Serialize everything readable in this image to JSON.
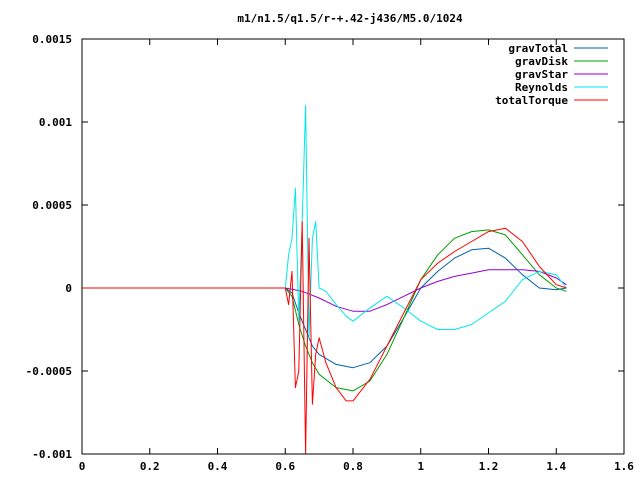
{
  "chart_data": {
    "type": "line",
    "title": "m1/n1.5/q1.5/r-+.42-j436/M5.0/1024",
    "xlabel": "",
    "ylabel": "",
    "xlim": [
      0,
      1.6
    ],
    "ylim": [
      -0.001,
      0.0015
    ],
    "grid": false,
    "legend_position": "top-right",
    "x_ticks": [
      {
        "value": 0,
        "label": "0"
      },
      {
        "value": 0.2,
        "label": "0.2"
      },
      {
        "value": 0.4,
        "label": "0.4"
      },
      {
        "value": 0.6,
        "label": "0.6"
      },
      {
        "value": 0.8,
        "label": "0.8"
      },
      {
        "value": 1.0,
        "label": "1"
      },
      {
        "value": 1.2,
        "label": "1.2"
      },
      {
        "value": 1.4,
        "label": "1.4"
      },
      {
        "value": 1.6,
        "label": "1.6"
      }
    ],
    "y_ticks": [
      {
        "value": -0.001,
        "label": "-0.001"
      },
      {
        "value": -0.0005,
        "label": "-0.0005"
      },
      {
        "value": 0,
        "label": "0"
      },
      {
        "value": 0.0005,
        "label": "0.0005"
      },
      {
        "value": 0.001,
        "label": "0.001"
      },
      {
        "value": 0.0015,
        "label": "0.0015"
      }
    ],
    "series": [
      {
        "name": "gravTotal",
        "color": "#0060ad",
        "x": [
          0,
          0.6,
          0.62,
          0.64,
          0.66,
          0.68,
          0.7,
          0.75,
          0.8,
          0.85,
          0.9,
          0.95,
          1.0,
          1.05,
          1.1,
          1.15,
          1.2,
          1.25,
          1.3,
          1.35,
          1.4,
          1.43
        ],
        "y": [
          0,
          0,
          -3e-05,
          -0.00015,
          -0.00025,
          -0.00035,
          -0.0004,
          -0.00046,
          -0.00048,
          -0.00045,
          -0.00035,
          -0.00018,
          0,
          0.0001,
          0.00018,
          0.00023,
          0.00024,
          0.00018,
          8e-05,
          0,
          -1e-05,
          0
        ]
      },
      {
        "name": "gravDisk",
        "color": "#009e00",
        "x": [
          0,
          0.6,
          0.62,
          0.64,
          0.66,
          0.68,
          0.7,
          0.75,
          0.8,
          0.85,
          0.9,
          0.95,
          1.0,
          1.05,
          1.1,
          1.15,
          1.2,
          1.25,
          1.3,
          1.35,
          1.4,
          1.43
        ],
        "y": [
          0,
          0,
          -5e-05,
          -0.00022,
          -0.00035,
          -0.00045,
          -0.00052,
          -0.0006,
          -0.00062,
          -0.00056,
          -0.0004,
          -0.00018,
          5e-05,
          0.0002,
          0.0003,
          0.00034,
          0.00035,
          0.00032,
          0.0002,
          8e-05,
          0,
          -2e-05
        ]
      },
      {
        "name": "gravStar",
        "color": "#9400d3",
        "x": [
          0,
          0.6,
          0.65,
          0.7,
          0.75,
          0.8,
          0.85,
          0.9,
          0.95,
          1.0,
          1.05,
          1.1,
          1.15,
          1.2,
          1.25,
          1.3,
          1.35,
          1.4,
          1.43
        ],
        "y": [
          0,
          0,
          -2e-05,
          -6e-05,
          -0.00011,
          -0.00014,
          -0.00014,
          -0.0001,
          -5e-05,
          0,
          4e-05,
          7e-05,
          9e-05,
          0.00011,
          0.00011,
          0.00011,
          0.0001,
          6e-05,
          2e-05
        ]
      },
      {
        "name": "Reynolds",
        "color": "#00e8e8",
        "x": [
          0,
          0.6,
          0.61,
          0.62,
          0.63,
          0.64,
          0.65,
          0.66,
          0.67,
          0.68,
          0.69,
          0.7,
          0.72,
          0.75,
          0.78,
          0.8,
          0.85,
          0.9,
          0.95,
          1.0,
          1.05,
          1.1,
          1.15,
          1.2,
          1.25,
          1.3,
          1.35,
          1.4,
          1.43
        ],
        "y": [
          0,
          0,
          0.0002,
          0.0003,
          0.0006,
          -0.0002,
          0.0004,
          0.0011,
          -0.0003,
          0.0003,
          0.0004,
          0,
          -2e-05,
          -0.0001,
          -0.00017,
          -0.0002,
          -0.00012,
          -5e-05,
          -0.00012,
          -0.0002,
          -0.00025,
          -0.00025,
          -0.00022,
          -0.00015,
          -8e-05,
          5e-05,
          0.0001,
          8e-05,
          0
        ]
      },
      {
        "name": "totalTorque",
        "color": "#ff0000",
        "x": [
          0,
          0.6,
          0.61,
          0.62,
          0.63,
          0.64,
          0.65,
          0.66,
          0.67,
          0.68,
          0.69,
          0.7,
          0.72,
          0.75,
          0.78,
          0.8,
          0.85,
          0.9,
          0.95,
          1.0,
          1.05,
          1.1,
          1.15,
          1.2,
          1.25,
          1.3,
          1.35,
          1.4,
          1.43
        ],
        "y": [
          0,
          0,
          -0.0001,
          0.0001,
          -0.0006,
          -0.0005,
          0.0004,
          -0.001,
          0.0003,
          -0.0007,
          -0.0004,
          -0.0003,
          -0.00045,
          -0.0006,
          -0.00068,
          -0.00068,
          -0.00055,
          -0.00035,
          -0.00015,
          5e-05,
          0.00015,
          0.00022,
          0.00028,
          0.00034,
          0.00036,
          0.00028,
          0.00013,
          2e-05,
          0
        ]
      }
    ]
  }
}
